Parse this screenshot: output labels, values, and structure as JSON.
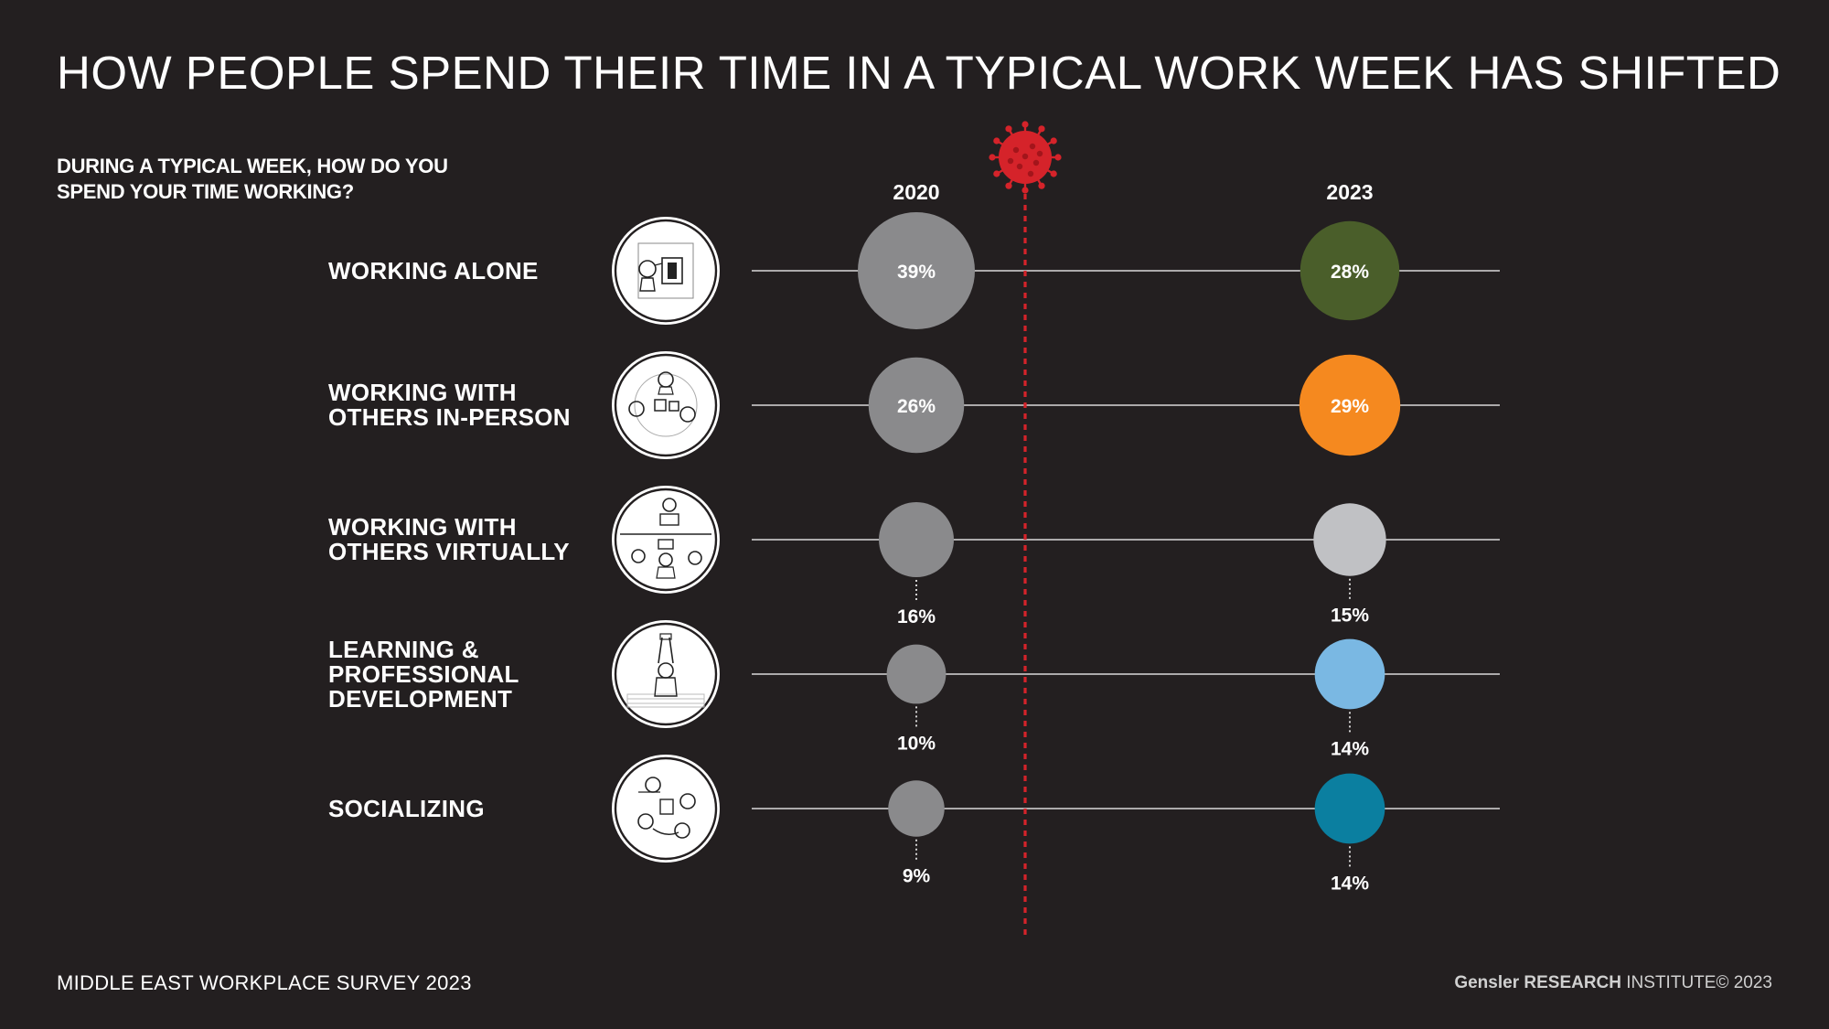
{
  "header": {
    "title": "HOW PEOPLE SPEND THEIR TIME IN A TYPICAL WORK WEEK HAS SHIFTED",
    "question_line1": "DURING A TYPICAL WEEK, HOW DO YOU",
    "question_line2": "SPEND YOUR TIME WORKING?"
  },
  "footer": {
    "survey": "MIDDLE EAST WORKPLACE SURVEY 2023",
    "brand": "Gensler",
    "research": "RESEARCH",
    "institute": "INSTITUTE",
    "copyright": "© 2023"
  },
  "chart_data": {
    "type": "bubble-dot-plot",
    "title": "HOW PEOPLE SPEND THEIR TIME IN A TYPICAL WORK WEEK HAS SHIFTED",
    "question": "DURING A TYPICAL WEEK, HOW DO YOU SPEND YOUR TIME WORKING?",
    "x": [
      "2020",
      "2023"
    ],
    "categories": [
      {
        "label_lines": [
          "WORKING ALONE"
        ],
        "icon": "person-at-desk-icon"
      },
      {
        "label_lines": [
          "WORKING WITH",
          "OTHERS IN-PERSON"
        ],
        "icon": "meeting-table-icon"
      },
      {
        "label_lines": [
          "WORKING WITH",
          "OTHERS VIRTUALLY"
        ],
        "icon": "video-call-icon"
      },
      {
        "label_lines": [
          "LEARNING &",
          "PROFESSIONAL",
          "DEVELOPMENT"
        ],
        "icon": "presenter-icon"
      },
      {
        "label_lines": [
          "SOCIALIZING"
        ],
        "icon": "people-socializing-icon"
      }
    ],
    "series": [
      {
        "values": [
          39,
          26,
          16,
          10,
          9
        ],
        "labels": [
          "39%",
          "26%",
          "16%",
          "10%",
          "9%"
        ],
        "colors": [
          "#8a8a8c",
          "#8a8a8c",
          "#8a8a8c",
          "#8a8a8c",
          "#8a8a8c"
        ]
      },
      {
        "values": [
          28,
          29,
          15,
          14,
          14
        ],
        "labels": [
          "28%",
          "29%",
          "15%",
          "14%",
          "14%"
        ],
        "colors": [
          "#4a5e2a",
          "#f5891f",
          "#c0c1c4",
          "#7ab8e3",
          "#0b7fa0"
        ]
      }
    ],
    "divider": {
      "icon": "virus-icon",
      "color": "#d5232a"
    },
    "colors": {
      "background": "#231f20",
      "line": "#d9d9d9",
      "text": "#ffffff"
    }
  }
}
